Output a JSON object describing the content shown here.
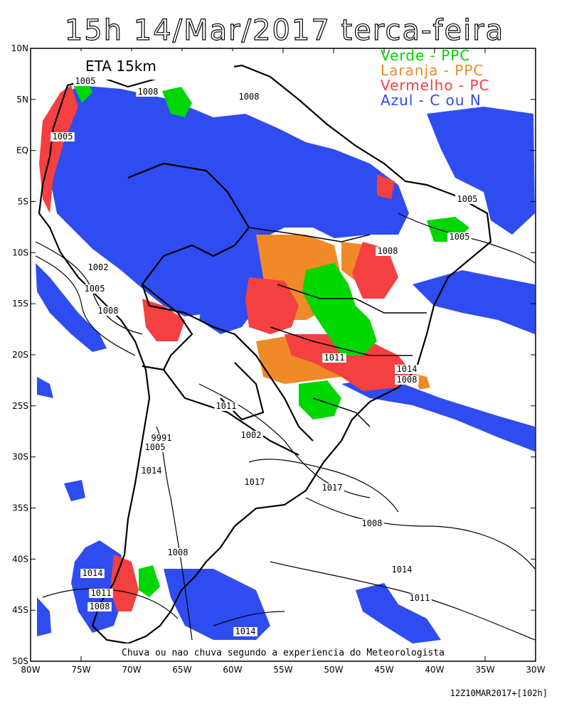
{
  "title": "15h 14/Mar/2017 terca-feira",
  "model_box": "ETA 15km",
  "legend": [
    {
      "text": "Verde - PPC",
      "color": "#00d600"
    },
    {
      "text": "Laranja - PPC",
      "color": "#f08a28"
    },
    {
      "text": "Vermelho - PC",
      "color": "#f44040"
    },
    {
      "text": "Azul - C ou N",
      "color": "#2e4cf0"
    }
  ],
  "caption": "Chuva ou nao chuva segundo a experiencia do Meteorologista",
  "footer": "12Z10MAR2017+[102h]",
  "lat_labels": [
    "10N",
    "5N",
    "EQ",
    "5S",
    "10S",
    "15S",
    "20S",
    "25S",
    "30S",
    "35S",
    "40S",
    "45S",
    "50S"
  ],
  "lon_labels": [
    "80W",
    "75W",
    "70W",
    "65W",
    "60W",
    "55W",
    "50W",
    "45W",
    "40W",
    "35W",
    "30W"
  ],
  "isobar_labels": [
    "1005",
    "1008",
    "1005",
    "1008",
    "1005",
    "1005",
    "1002",
    "1005",
    "1008",
    "1008",
    "1011",
    "1014",
    "1008",
    "1011",
    "1002",
    "1005",
    "1014",
    "1017",
    "1017",
    "1008",
    "1014",
    "1011",
    "1014",
    "1011",
    "1008",
    "1008",
    "1014",
    "9991"
  ],
  "colors": {
    "green": "#00d600",
    "orange": "#f08a28",
    "red": "#f44040",
    "blue": "#2e4cf0"
  }
}
